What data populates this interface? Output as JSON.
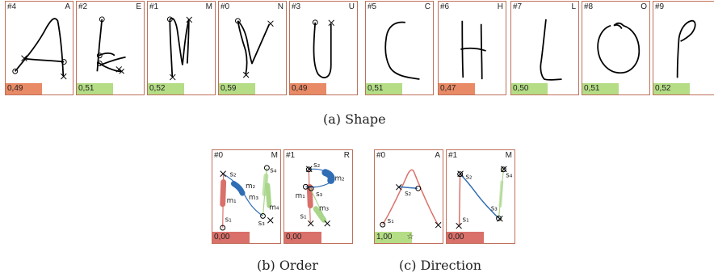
{
  "shape": {
    "caption": "(a) Shape",
    "cards": [
      {
        "id": "#4",
        "letter": "A",
        "score": "0,49",
        "level": "red"
      },
      {
        "id": "#2",
        "letter": "E",
        "score": "0,51",
        "level": "green"
      },
      {
        "id": "#1",
        "letter": "M",
        "score": "0,52",
        "level": "green"
      },
      {
        "id": "#0",
        "letter": "N",
        "score": "0,59",
        "level": "green"
      },
      {
        "id": "#3",
        "letter": "U",
        "score": "0,49",
        "level": "red"
      },
      {
        "id": "#5",
        "letter": "C",
        "score": "0,51",
        "level": "green"
      },
      {
        "id": "#6",
        "letter": "H",
        "score": "0,47",
        "level": "red"
      },
      {
        "id": "#7",
        "letter": "L",
        "score": "0,50",
        "level": "green"
      },
      {
        "id": "#8",
        "letter": "O",
        "score": "0,51",
        "level": "green"
      },
      {
        "id": "#9",
        "letter": "",
        "score": "0,52",
        "level": "green"
      }
    ]
  },
  "order": {
    "caption": "(b) Order",
    "cards": [
      {
        "id": "#0",
        "letter": "M",
        "score": "0,00",
        "level": "dred"
      },
      {
        "id": "#1",
        "letter": "R",
        "score": "0,00",
        "level": "dred"
      }
    ]
  },
  "direction": {
    "caption": "(c) Direction",
    "cards": [
      {
        "id": "#0",
        "letter": "A",
        "score": "1,00",
        "level": "green",
        "star": "☆"
      },
      {
        "id": "#1",
        "letter": "M",
        "score": "0,00",
        "level": "dred"
      }
    ]
  },
  "labels": {
    "s1": "s₁",
    "s2": "s₂",
    "s3": "s₃",
    "s4": "s₄",
    "m1": "m₁",
    "m2": "m₂",
    "m3": "m₃",
    "m4": "m₄"
  },
  "colors": {
    "border": "#c0705a",
    "score_red": "#e88a66",
    "score_green": "#b4dd86",
    "score_dark_red": "#d9706a",
    "stroke_red": "#d9706a",
    "stroke_blue": "#2f6db5",
    "stroke_green": "#a9d68a"
  }
}
